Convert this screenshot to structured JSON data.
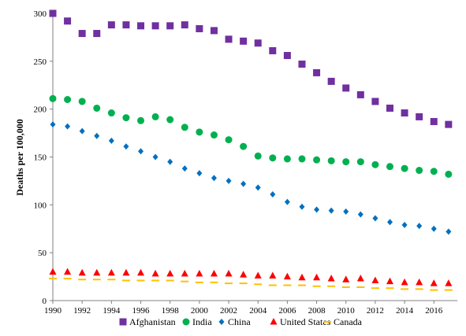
{
  "chart_data": {
    "type": "scatter",
    "title": "",
    "xlabel": "",
    "ylabel": "Deaths per 100,000",
    "xlim": [
      1990,
      2017.6
    ],
    "ylim": [
      0,
      300
    ],
    "xticks": [
      1990,
      1992,
      1994,
      1996,
      1998,
      2000,
      2002,
      2004,
      2006,
      2008,
      2010,
      2012,
      2014,
      2016
    ],
    "yticks": [
      0,
      50,
      100,
      150,
      200,
      250,
      300
    ],
    "grid": false,
    "legend_position": "bottom",
    "x": [
      1990,
      1991,
      1992,
      1993,
      1994,
      1995,
      1996,
      1997,
      1998,
      1999,
      2000,
      2001,
      2002,
      2003,
      2004,
      2005,
      2006,
      2007,
      2008,
      2009,
      2010,
      2011,
      2012,
      2013,
      2014,
      2015,
      2016,
      2017
    ],
    "series": [
      {
        "name": "Afghanistan",
        "marker": "square",
        "color": "#7030a0",
        "values": [
          300,
          292,
          279,
          279,
          288,
          288,
          287,
          287,
          287,
          288,
          284,
          282,
          273,
          271,
          269,
          261,
          256,
          247,
          238,
          229,
          222,
          215,
          208,
          201,
          196,
          192,
          187,
          184
        ]
      },
      {
        "name": "India",
        "marker": "circle",
        "color": "#00b050",
        "values": [
          211,
          210,
          208,
          201,
          196,
          191,
          188,
          192,
          189,
          181,
          176,
          173,
          168,
          161,
          151,
          149,
          148,
          148,
          147,
          146,
          145,
          145,
          142,
          140,
          138,
          136,
          135,
          132
        ]
      },
      {
        "name": "China",
        "marker": "diamond",
        "color": "#0070c0",
        "values": [
          184,
          182,
          177,
          172,
          167,
          161,
          156,
          150,
          145,
          138,
          133,
          128,
          125,
          122,
          118,
          111,
          103,
          98,
          95,
          94,
          93,
          90,
          86,
          82,
          79,
          78,
          75,
          72
        ]
      },
      {
        "name": "United States",
        "marker": "triangle",
        "color": "#ff0000",
        "values": [
          30,
          30,
          29,
          29,
          29,
          29,
          29,
          28,
          28,
          28,
          28,
          28,
          28,
          27,
          26,
          26,
          25,
          24,
          24,
          23,
          22,
          23,
          21,
          20,
          19,
          19,
          18,
          18
        ]
      },
      {
        "name": "Canada",
        "marker": "dash",
        "color": "#ffc000",
        "values": [
          23,
          23,
          22,
          22,
          22,
          21,
          21,
          21,
          21,
          20,
          19,
          19,
          18,
          18,
          17,
          16,
          16,
          16,
          15,
          15,
          14,
          14,
          13,
          13,
          12,
          12,
          11,
          11
        ]
      }
    ]
  }
}
